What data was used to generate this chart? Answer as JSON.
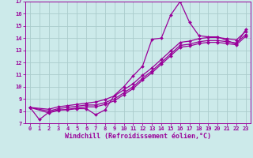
{
  "title": "",
  "xlabel": "Windchill (Refroidissement éolien,°C)",
  "bg_color": "#cceaea",
  "grid_color": "#aacccc",
  "line_color": "#990099",
  "marker": "D",
  "markersize": 2.0,
  "linewidth": 0.9,
  "xlim": [
    -0.5,
    23.5
  ],
  "ylim": [
    7,
    17
  ],
  "xticks": [
    0,
    1,
    2,
    3,
    4,
    5,
    6,
    7,
    8,
    9,
    10,
    11,
    12,
    13,
    14,
    15,
    16,
    17,
    18,
    19,
    20,
    21,
    22,
    23
  ],
  "yticks": [
    7,
    8,
    9,
    10,
    11,
    12,
    13,
    14,
    15,
    16,
    17
  ],
  "series": [
    {
      "x": [
        0,
        1,
        2,
        3,
        4,
        5,
        6,
        7,
        8,
        9,
        10,
        11,
        12,
        13,
        14,
        15,
        16,
        17,
        18,
        19,
        20,
        21,
        22,
        23
      ],
      "y": [
        8.3,
        7.3,
        7.9,
        8.1,
        8.1,
        8.2,
        8.2,
        7.7,
        8.1,
        9.3,
        10.0,
        10.9,
        11.7,
        13.9,
        14.0,
        15.9,
        17.0,
        15.3,
        14.2,
        14.1,
        14.1,
        13.8,
        13.5,
        14.7
      ]
    },
    {
      "x": [
        0,
        2,
        3,
        4,
        5,
        6,
        7,
        8,
        9,
        10,
        11,
        12,
        13,
        14,
        15,
        16,
        17,
        18,
        19,
        20,
        21,
        22,
        23
      ],
      "y": [
        8.3,
        8.15,
        8.35,
        8.45,
        8.55,
        8.65,
        8.75,
        8.95,
        9.25,
        9.75,
        10.25,
        10.95,
        11.55,
        12.25,
        12.95,
        13.65,
        13.75,
        13.95,
        14.05,
        14.05,
        13.95,
        13.85,
        14.55
      ]
    },
    {
      "x": [
        0,
        2,
        3,
        4,
        5,
        6,
        7,
        8,
        9,
        10,
        11,
        12,
        13,
        14,
        15,
        16,
        17,
        18,
        19,
        20,
        21,
        22,
        23
      ],
      "y": [
        8.3,
        8.0,
        8.2,
        8.3,
        8.4,
        8.5,
        8.5,
        8.7,
        9.0,
        9.5,
        10.0,
        10.7,
        11.3,
        12.0,
        12.7,
        13.4,
        13.5,
        13.7,
        13.8,
        13.8,
        13.7,
        13.6,
        14.3
      ]
    },
    {
      "x": [
        0,
        2,
        3,
        4,
        5,
        6,
        7,
        8,
        9,
        10,
        11,
        12,
        13,
        14,
        15,
        16,
        17,
        18,
        19,
        20,
        21,
        22,
        23
      ],
      "y": [
        8.3,
        7.85,
        8.05,
        8.15,
        8.25,
        8.35,
        8.35,
        8.55,
        8.85,
        9.35,
        9.85,
        10.55,
        11.15,
        11.85,
        12.55,
        13.25,
        13.35,
        13.55,
        13.65,
        13.65,
        13.55,
        13.45,
        14.15
      ]
    }
  ],
  "tick_fontsize": 5.0,
  "label_fontsize": 6.0
}
